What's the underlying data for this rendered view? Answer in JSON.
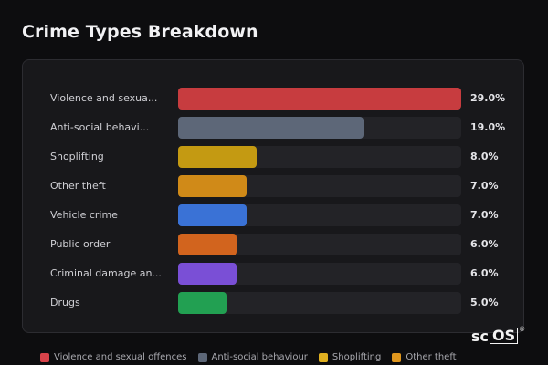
{
  "page": {
    "title": "Crime Types Breakdown"
  },
  "chart_data": {
    "type": "bar",
    "orientation": "horizontal",
    "title": "Crime Types Breakdown",
    "categories": [
      "Violence and sexual offences",
      "Anti-social behaviour",
      "Shoplifting",
      "Other theft",
      "Vehicle crime",
      "Public order",
      "Criminal damage and arson",
      "Drugs"
    ],
    "display_labels": [
      "Violence and sexua...",
      "Anti-social behavi...",
      "Shoplifting",
      "Other theft",
      "Vehicle crime",
      "Public order",
      "Criminal damage an...",
      "Drugs"
    ],
    "values": [
      29.0,
      19.0,
      8.0,
      7.0,
      7.0,
      6.0,
      6.0,
      5.0
    ],
    "value_labels": [
      "29.0%",
      "19.0%",
      "8.0%",
      "7.0%",
      "7.0%",
      "6.0%",
      "6.0%",
      "5.0%"
    ],
    "colors": [
      "#c73c3f",
      "#5d6778",
      "#c49a12",
      "#d08a18",
      "#3a72d6",
      "#d2641e",
      "#7a4fd6",
      "#22a052"
    ],
    "xlim": [
      0,
      29.0
    ],
    "unit": "%",
    "grid": false,
    "legend_position": "bottom"
  },
  "legend": [
    {
      "label": "Violence and sexual offences",
      "color": "#d8434a"
    },
    {
      "label": "Anti-social behaviour",
      "color": "#5d6778"
    },
    {
      "label": "Shoplifting",
      "color": "#e0b020"
    },
    {
      "label": "Other theft",
      "color": "#e0971e"
    }
  ],
  "logo": {
    "prefix": "sc",
    "boxed": "OS",
    "mark": "®"
  }
}
